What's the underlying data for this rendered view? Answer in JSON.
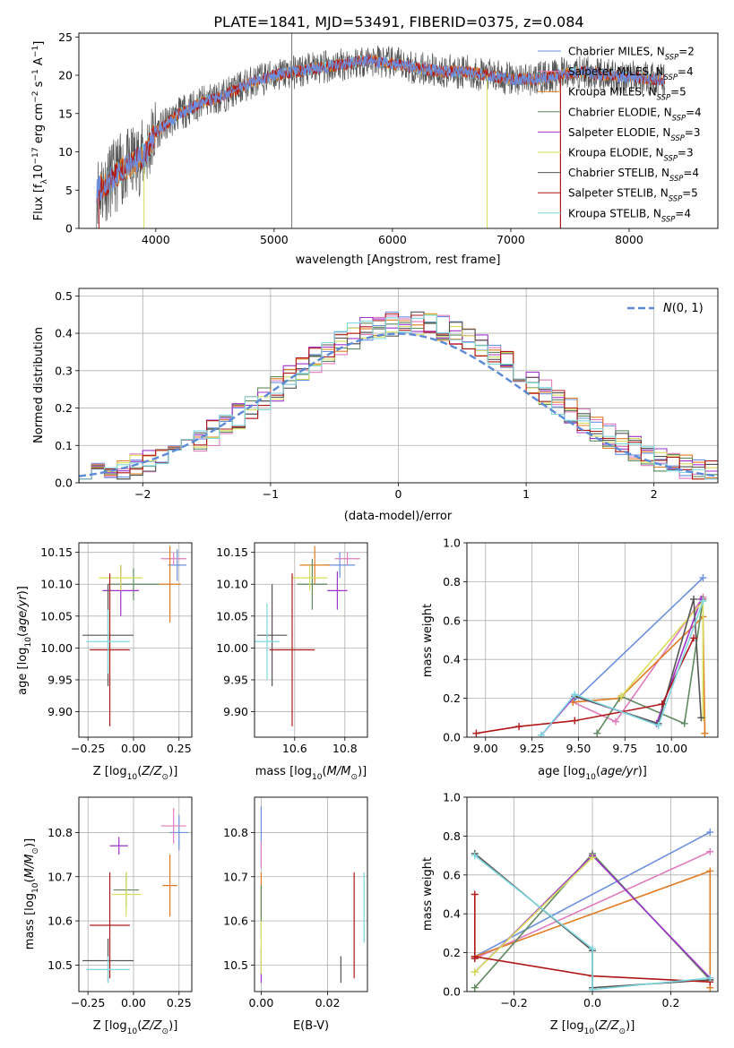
{
  "figure": {
    "title": "PLATE=1841, MJD=53491, FIBERID=0375, z=0.084"
  },
  "colors": [
    "#6a8fe0",
    "#e07bbf",
    "#e07b22",
    "#5f8a5f",
    "#a033cc",
    "#d7df5a",
    "#555555",
    "#b01818",
    "#7fd8e0"
  ],
  "chart_data": [
    {
      "id": "spectrum",
      "type": "line",
      "xlabel": "wavelength [Angstrom, rest frame]",
      "ylabel": "Flux [f_λ 10^-17 erg cm^-2 s^-1 A^-1]",
      "xlim": [
        3350,
        8750
      ],
      "ylim": [
        0,
        25.5
      ],
      "xticks": [
        4000,
        5000,
        6000,
        7000,
        8000
      ],
      "yticks": [
        0,
        5,
        10,
        15,
        20,
        25
      ],
      "grid": false,
      "legend_position": "right",
      "spectrum_shape": {
        "x": [
          3500,
          3600,
          3700,
          3800,
          3900,
          4000,
          4200,
          4400,
          4600,
          4800,
          5000,
          5200,
          5400,
          5600,
          5800,
          6000,
          6200,
          6400,
          6600,
          6800,
          7000,
          7200,
          7400,
          7600,
          7800,
          8000,
          8200,
          8300
        ],
        "y": [
          5,
          6,
          7.5,
          8.5,
          9.5,
          12.5,
          15,
          16.5,
          17.5,
          19,
          20,
          20.5,
          21,
          21.5,
          22,
          21.5,
          21,
          20.5,
          20.5,
          20,
          19.5,
          19.5,
          20,
          20.5,
          20,
          19.8,
          19.5,
          19.3
        ]
      },
      "series": [
        {
          "name": "Chabrier MILES, N_SSP=2"
        },
        {
          "name": "Salpeter MILES, N_SSP=4"
        },
        {
          "name": "Kroupa MILES, N_SSP=5"
        },
        {
          "name": "Chabrier ELODIE, N_SSP=4"
        },
        {
          "name": "Salpeter ELODIE, N_SSP=3"
        },
        {
          "name": "Kroupa ELODIE, N_SSP=3"
        },
        {
          "name": "Chabrier STELIB, N_SSP=4"
        },
        {
          "name": "Salpeter STELIB, N_SSP=5"
        },
        {
          "name": "Kroupa STELIB, N_SSP=4"
        }
      ]
    },
    {
      "id": "residuals",
      "type": "bar",
      "xlabel": "(data-model)/error",
      "ylabel": "Normed distribution",
      "xlim": [
        -2.5,
        2.5
      ],
      "ylim": [
        0,
        0.52
      ],
      "xticks": [
        -2,
        -1,
        0,
        1,
        2
      ],
      "yticks": [
        0.0,
        0.1,
        0.2,
        0.3,
        0.4,
        0.5
      ],
      "grid": true,
      "legend": "N(0,1)",
      "legend_position": "top-right"
    },
    {
      "id": "age_vs_Z",
      "type": "scatter",
      "xlabel": "Z [log10(Z/Z⊙)]",
      "ylabel": "age [log10(age/yr)]",
      "xlim": [
        -0.3,
        0.32
      ],
      "ylim": [
        9.86,
        10.165
      ],
      "xticks": [
        -0.25,
        0.0,
        0.25
      ],
      "yticks": [
        9.9,
        9.95,
        10.0,
        10.05,
        10.1,
        10.15
      ],
      "grid": true,
      "points": [
        {
          "x": 0.24,
          "y": 10.13,
          "xerr": 0.05,
          "yerr": 0.025
        },
        {
          "x": 0.22,
          "y": 10.14,
          "xerr": 0.07,
          "yerr": 0.01
        },
        {
          "x": 0.2,
          "y": 10.1,
          "xerr": 0.06,
          "yerr": 0.06
        },
        {
          "x": 0.0,
          "y": 10.1,
          "xerr": 0.14,
          "yerr": 0.025
        },
        {
          "x": -0.07,
          "y": 10.09,
          "xerr": 0.1,
          "yerr": 0.04
        },
        {
          "x": -0.07,
          "y": 10.11,
          "xerr": 0.12,
          "yerr": 0.02
        },
        {
          "x": -0.14,
          "y": 10.02,
          "xerr": 0.14,
          "yerr": 0.08
        },
        {
          "x": -0.13,
          "y": 9.997,
          "xerr": 0.11,
          "yerr": 0.12
        },
        {
          "x": -0.14,
          "y": 10.01,
          "xerr": 0.12,
          "yerr": 0.05
        }
      ]
    },
    {
      "id": "age_vs_mass",
      "type": "scatter",
      "xlabel": "mass [log10(M/M⊙)]",
      "ylabel": "",
      "xlim": [
        10.44,
        10.89
      ],
      "ylim": [
        9.86,
        10.165
      ],
      "xticks": [
        10.6,
        10.8
      ],
      "yticks": [
        9.9,
        9.95,
        10.0,
        10.05,
        10.1,
        10.15
      ],
      "grid": true,
      "points": [
        {
          "x": 10.78,
          "y": 10.13,
          "xerr": 0.06,
          "yerr": 0.02
        },
        {
          "x": 10.81,
          "y": 10.14,
          "xerr": 0.05,
          "yerr": 0.01
        },
        {
          "x": 10.68,
          "y": 10.13,
          "xerr": 0.06,
          "yerr": 0.03
        },
        {
          "x": 10.67,
          "y": 10.1,
          "xerr": 0.06,
          "yerr": 0.04
        },
        {
          "x": 10.77,
          "y": 10.09,
          "xerr": 0.04,
          "yerr": 0.03
        },
        {
          "x": 10.66,
          "y": 10.11,
          "xerr": 0.07,
          "yerr": 0.02
        },
        {
          "x": 10.51,
          "y": 10.02,
          "xerr": 0.06,
          "yerr": 0.08
        },
        {
          "x": 10.59,
          "y": 9.997,
          "xerr": 0.09,
          "yerr": 0.12
        },
        {
          "x": 10.49,
          "y": 10.01,
          "xerr": 0.05,
          "yerr": 0.06
        }
      ]
    },
    {
      "id": "weight_vs_age",
      "type": "line",
      "xlabel": "age [log10(age/yr)]",
      "ylabel": "mass weight",
      "xlim": [
        8.9,
        10.25
      ],
      "ylim": [
        0,
        1
      ],
      "xticks": [
        9.0,
        9.25,
        9.5,
        9.75,
        10.0
      ],
      "yticks": [
        0.0,
        0.2,
        0.4,
        0.6,
        0.8,
        1.0
      ],
      "grid": true,
      "series": [
        {
          "x": [
            9.47,
            10.17
          ],
          "y": [
            0.18,
            0.82
          ]
        },
        {
          "x": [
            9.47,
            9.7,
            10.17
          ],
          "y": [
            0.18,
            0.08,
            0.72
          ]
        },
        {
          "x": [
            9.47,
            9.72,
            10.17,
            10.18
          ],
          "y": [
            0.18,
            0.2,
            0.62,
            0.02
          ]
        },
        {
          "x": [
            9.6,
            9.73,
            10.07,
            10.17
          ],
          "y": [
            0.02,
            0.21,
            0.07,
            0.71
          ]
        },
        {
          "x": [
            9.3,
            9.48,
            9.92,
            10.16
          ],
          "y": [
            0.01,
            0.21,
            0.07,
            0.71
          ]
        },
        {
          "x": [
            9.73,
            10.17,
            10.17
          ],
          "y": [
            0.21,
            0.7,
            0.1
          ]
        },
        {
          "x": [
            9.48,
            9.93,
            10.12,
            10.16
          ],
          "y": [
            0.21,
            0.07,
            0.71,
            0.1
          ]
        },
        {
          "x": [
            8.95,
            9.18,
            9.48,
            9.95,
            10.12
          ],
          "y": [
            0.02,
            0.055,
            0.085,
            0.17,
            0.51
          ]
        },
        {
          "x": [
            9.3,
            9.48,
            9.93,
            10.17
          ],
          "y": [
            0.01,
            0.22,
            0.06,
            0.7
          ]
        }
      ]
    },
    {
      "id": "mass_vs_Z",
      "type": "scatter",
      "xlabel": "Z [log10(Z/Z⊙)]",
      "ylabel": "mass [log10(M/M⊙)]",
      "xlim": [
        -0.3,
        0.32
      ],
      "ylim": [
        10.44,
        10.88
      ],
      "xticks": [
        -0.25,
        0.0,
        0.25
      ],
      "yticks": [
        10.5,
        10.6,
        10.7,
        10.8
      ],
      "grid": true,
      "points": [
        {
          "x": 0.25,
          "y": 10.8,
          "xerr": 0.05,
          "yerr": 0.04
        },
        {
          "x": 0.22,
          "y": 10.815,
          "xerr": 0.07,
          "yerr": 0.04
        },
        {
          "x": 0.2,
          "y": 10.68,
          "xerr": 0.04,
          "yerr": 0.07
        },
        {
          "x": -0.04,
          "y": 10.67,
          "xerr": 0.07,
          "yerr": 0.04
        },
        {
          "x": -0.08,
          "y": 10.77,
          "xerr": 0.05,
          "yerr": 0.02
        },
        {
          "x": -0.04,
          "y": 10.66,
          "xerr": 0.08,
          "yerr": 0.05
        },
        {
          "x": -0.14,
          "y": 10.51,
          "xerr": 0.14,
          "yerr": 0.05
        },
        {
          "x": -0.13,
          "y": 10.59,
          "xerr": 0.11,
          "yerr": 0.12
        },
        {
          "x": -0.14,
          "y": 10.49,
          "xerr": 0.12,
          "yerr": 0.03
        }
      ]
    },
    {
      "id": "mass_vs_EBV",
      "type": "scatter",
      "xlabel": "E(B-V)",
      "ylabel": "",
      "xlim": [
        -0.002,
        0.032
      ],
      "ylim": [
        10.44,
        10.88
      ],
      "xticks": [
        0.0,
        0.02
      ],
      "yticks": [
        10.5,
        10.6,
        10.7,
        10.8
      ],
      "grid": true,
      "points": [
        {
          "x": 0.0,
          "y": 10.79,
          "yerr": 0.07
        },
        {
          "x": 0.0,
          "y": 10.75,
          "yerr": 0.03
        },
        {
          "x": 0.0,
          "y": 10.66,
          "yerr": 0.05
        },
        {
          "x": 0.0,
          "y": 10.62,
          "yerr": 0.06
        },
        {
          "x": 0.0,
          "y": 10.5,
          "yerr": 0.04
        },
        {
          "x": 0.0,
          "y": 10.54,
          "yerr": 0.06
        },
        {
          "x": 0.024,
          "y": 10.49,
          "yerr": 0.03
        },
        {
          "x": 0.028,
          "y": 10.59,
          "yerr": 0.12
        },
        {
          "x": 0.031,
          "y": 10.63,
          "yerr": 0.08
        }
      ]
    },
    {
      "id": "weight_vs_Z",
      "type": "line",
      "xlabel": "Z [log10(Z/Z⊙)]",
      "ylabel": "mass weight",
      "xlim": [
        -0.32,
        0.32
      ],
      "ylim": [
        0,
        1
      ],
      "xticks": [
        -0.2,
        0.0,
        0.2
      ],
      "yticks": [
        0.0,
        0.2,
        0.4,
        0.6,
        0.8,
        1.0
      ],
      "grid": true,
      "series": [
        {
          "x": [
            -0.3,
            0.3
          ],
          "y": [
            0.18,
            0.82
          ]
        },
        {
          "x": [
            -0.3,
            0.3
          ],
          "y": [
            0.17,
            0.72
          ]
        },
        {
          "x": [
            -0.3,
            0.3,
            0.3
          ],
          "y": [
            0.18,
            0.62,
            0.02
          ]
        },
        {
          "x": [
            -0.3,
            0.0,
            0.3
          ],
          "y": [
            0.02,
            0.71,
            0.06
          ]
        },
        {
          "x": [
            -0.3,
            0.0,
            0.3
          ],
          "y": [
            0.1,
            0.7,
            0.07
          ]
        },
        {
          "x": [
            -0.3,
            0.0
          ],
          "y": [
            0.1,
            0.69
          ]
        },
        {
          "x": [
            -0.3,
            0.0,
            0.0,
            0.3
          ],
          "y": [
            0.71,
            0.21,
            0.02,
            0.06
          ]
        },
        {
          "x": [
            -0.3,
            -0.3,
            -0.3,
            0.0,
            0.3
          ],
          "y": [
            0.5,
            0.17,
            0.18,
            0.08,
            0.05
          ]
        },
        {
          "x": [
            -0.3,
            0.0,
            0.0,
            0.3
          ],
          "y": [
            0.7,
            0.22,
            0.01,
            0.07
          ]
        }
      ]
    }
  ]
}
